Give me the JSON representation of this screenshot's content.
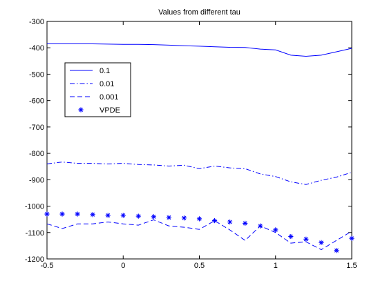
{
  "chart_data": {
    "type": "line",
    "title": "Values from different tau",
    "xlabel": "",
    "ylabel": "",
    "xlim": [
      -0.5,
      1.5
    ],
    "ylim": [
      -1200,
      -300
    ],
    "xticks": [
      -0.5,
      0,
      0.5,
      1,
      1.5
    ],
    "xtick_labels": [
      "-0.5",
      "0",
      "0.5",
      "1",
      "1.5"
    ],
    "yticks": [
      -300,
      -400,
      -500,
      -600,
      -700,
      -800,
      -900,
      -1000,
      -1100,
      -1200
    ],
    "ytick_labels": [
      "-300",
      "-400",
      "-500",
      "-600",
      "-700",
      "-800",
      "-900",
      "-1000",
      "-1100",
      "-1200"
    ],
    "grid": false,
    "legend_position": "upper-left",
    "x": [
      -0.5,
      -0.4,
      -0.3,
      -0.2,
      -0.1,
      0,
      0.1,
      0.2,
      0.3,
      0.4,
      0.5,
      0.6,
      0.7,
      0.8,
      0.9,
      1.0,
      1.1,
      1.2,
      1.3,
      1.4,
      1.5
    ],
    "series": [
      {
        "name": "0.1",
        "style": "solid",
        "marker": "none",
        "color": "#0000ff",
        "values": [
          -385,
          -385,
          -385,
          -385,
          -386,
          -387,
          -387,
          -388,
          -390,
          -392,
          -394,
          -396,
          -398,
          -399,
          -405,
          -408,
          -428,
          -432,
          -428,
          -415,
          -402
        ]
      },
      {
        "name": "0.01",
        "style": "dashdot",
        "marker": "none",
        "color": "#0000ff",
        "values": [
          -840,
          -833,
          -838,
          -838,
          -840,
          -838,
          -842,
          -844,
          -848,
          -845,
          -858,
          -848,
          -855,
          -858,
          -878,
          -888,
          -908,
          -918,
          -902,
          -890,
          -872
        ]
      },
      {
        "name": "0.001",
        "style": "dashed",
        "marker": "none",
        "color": "#0000ff",
        "values": [
          -1067,
          -1085,
          -1067,
          -1067,
          -1060,
          -1067,
          -1072,
          -1052,
          -1075,
          -1080,
          -1088,
          -1055,
          -1090,
          -1130,
          -1075,
          -1100,
          -1140,
          -1135,
          -1165,
          -1130,
          -1095
        ]
      },
      {
        "name": "VPDE",
        "style": "none",
        "marker": "*",
        "color": "#0000ff",
        "values": [
          -1030,
          -1030,
          -1030,
          -1032,
          -1035,
          -1035,
          -1038,
          -1040,
          -1043,
          -1045,
          -1048,
          -1055,
          -1060,
          -1065,
          -1075,
          -1090,
          -1115,
          -1125,
          -1138,
          -1168,
          -1122
        ]
      }
    ]
  }
}
